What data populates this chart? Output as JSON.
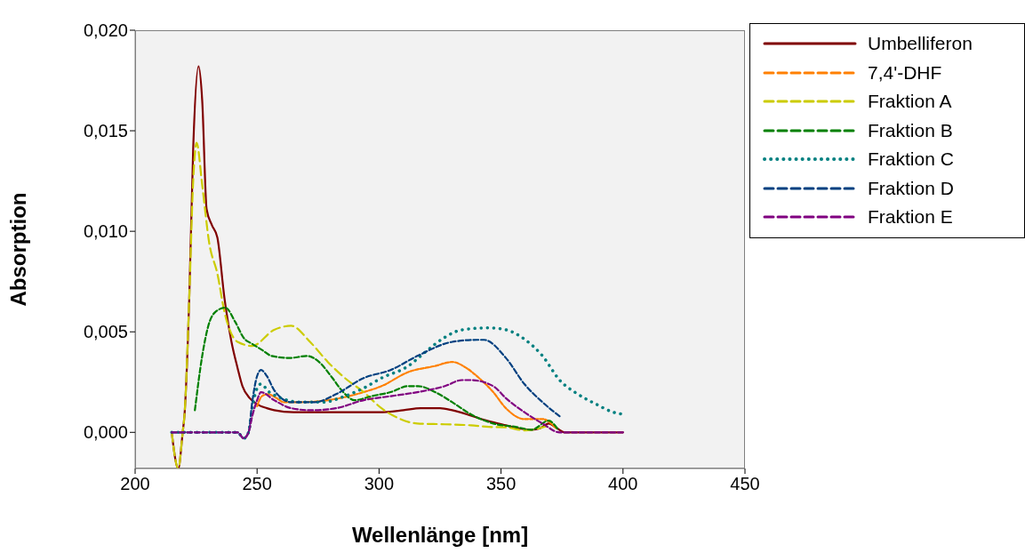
{
  "chart_data": {
    "type": "line",
    "xlabel": "Wellenlänge [nm]",
    "ylabel": "Absorption",
    "xlim": [
      200,
      450
    ],
    "xticks": [
      200,
      250,
      300,
      350,
      400,
      450
    ],
    "ylim": [
      -0.0018,
      0.02
    ],
    "yticks": [
      {
        "value": 0,
        "label": "0,000"
      },
      {
        "value": 0.005,
        "label": "0,005"
      },
      {
        "value": 0.01,
        "label": "0,010"
      },
      {
        "value": 0.015,
        "label": "0,015"
      },
      {
        "value": 0.02,
        "label": "0,020"
      }
    ],
    "grid": false,
    "legend": "right",
    "marker": "none",
    "series": [
      {
        "name": "Umbelliferon",
        "color": "#800000",
        "line_style": "solid",
        "x": [
          215,
          217.7,
          219.5,
          220.2,
          222.2,
          223.8,
          226,
          227.5,
          229.3,
          231.5,
          233.7,
          236.6,
          239.5,
          242,
          244,
          247,
          250,
          254,
          257,
          265,
          280,
          300,
          310,
          317,
          325,
          330,
          336,
          341,
          347,
          352,
          357,
          362.5,
          366,
          369.5,
          373,
          376,
          380,
          400
        ],
        "values": [
          0,
          -0.0018,
          0,
          0.0008,
          0.0067,
          0.0141,
          0.0182,
          0.0165,
          0.0111,
          0.0103,
          0.0097,
          0.0067,
          0.0045,
          0.0032,
          0.0023,
          0.0017,
          0.0014,
          0.0012,
          0.0011,
          0.001,
          0.001,
          0.001,
          0.0011,
          0.0012,
          0.0012,
          0.0011,
          0.0009,
          0.0007,
          0.0005,
          0.00035,
          0.0002,
          0.00013,
          0.0002,
          0.00044,
          0.0002,
          0,
          0,
          0
        ]
      },
      {
        "name": "7,4'-DHF",
        "color": "#ff8000",
        "line_style": "dashed",
        "x": [
          250,
          252,
          254.5,
          258,
          261,
          268,
          279,
          293.7,
          301,
          312,
          323,
          330,
          335.8,
          341,
          346.8,
          352,
          359.6,
          367,
          372.4
        ],
        "values": [
          0.0013,
          0.0018,
          0.0019,
          0.0017,
          0.0015,
          0.0015,
          0.0016,
          0.002,
          0.0023,
          0.003,
          0.0033,
          0.0035,
          0.0032,
          0.0027,
          0.002,
          0.0012,
          0.00066,
          0.00066,
          0.00022
        ]
      },
      {
        "name": "Fraktion A",
        "color": "#cccc00",
        "line_style": "dashed",
        "x": [
          215,
          217.7,
          219.5,
          220.2,
          222.2,
          223.8,
          225.2,
          227.5,
          230.4,
          233.7,
          236.6,
          242,
          248,
          257,
          264,
          271.7,
          279,
          286,
          293.7,
          301,
          308,
          315.7,
          327,
          337.6,
          345,
          352,
          359.6,
          368.7
        ],
        "values": [
          0,
          -0.0018,
          0,
          0.0008,
          0.0067,
          0.0125,
          0.0144,
          0.0123,
          0.0094,
          0.0079,
          0.006,
          0.0045,
          0.0043,
          0.0051,
          0.0053,
          0.0045,
          0.0035,
          0.0027,
          0.002,
          0.0012,
          0.0007,
          0.00044,
          0.0004,
          0.00035,
          0.00027,
          0.00025,
          0.0001,
          0.0003
        ]
      },
      {
        "name": "Fraktion B",
        "color": "#008000",
        "line_style": "dashed",
        "x": [
          224.5,
          227.5,
          230,
          233,
          237,
          241,
          244.5,
          248,
          252,
          256,
          263.3,
          270.6,
          275.4,
          280.9,
          284.6,
          290,
          297,
          304.7,
          312,
          316,
          323,
          330,
          337.6,
          346.8,
          356,
          362.5,
          369.5,
          373
        ],
        "values": [
          0.0011,
          0.0038,
          0.0053,
          0.006,
          0.0062,
          0.0055,
          0.0047,
          0.0044,
          0.0041,
          0.0038,
          0.0037,
          0.0038,
          0.0035,
          0.0027,
          0.0021,
          0.0016,
          0.0018,
          0.002,
          0.0023,
          0.0023,
          0.002,
          0.0015,
          0.0009,
          0.00044,
          0.00027,
          0.00013,
          0.00058,
          0.0002
        ]
      },
      {
        "name": "Fraktion C",
        "color": "#008080",
        "line_style": "dotted",
        "x": [
          215,
          235,
          242,
          244.5,
          246.5,
          248,
          250,
          251.5,
          255,
          258,
          268,
          277,
          286,
          293.7,
          301,
          312,
          319,
          326.6,
          334,
          345,
          352,
          360,
          367,
          374,
          381.5,
          389,
          396,
          400
        ],
        "values": [
          0,
          0,
          0,
          -0.0003,
          0,
          0.0012,
          0.0022,
          0.0024,
          0.002,
          0.0018,
          0.0015,
          0.0015,
          0.0018,
          0.0022,
          0.0027,
          0.0033,
          0.004,
          0.0047,
          0.0051,
          0.0052,
          0.0051,
          0.0046,
          0.0038,
          0.0026,
          0.0019,
          0.0014,
          0.001,
          0.0009
        ]
      },
      {
        "name": "Fraktion D",
        "color": "#004080",
        "line_style": "dashed",
        "x": [
          215,
          235,
          242,
          244.5,
          246.5,
          248,
          250,
          251.6,
          254,
          257,
          264,
          273.6,
          282.4,
          293.7,
          304.7,
          315.7,
          330,
          340,
          343,
          352,
          359.6,
          367,
          374
        ],
        "values": [
          0,
          0,
          0,
          -0.0003,
          0,
          0.0015,
          0.0028,
          0.0031,
          0.0028,
          0.0021,
          0.0015,
          0.0015,
          0.0019,
          0.0027,
          0.0031,
          0.0038,
          0.0045,
          0.0046,
          0.0046,
          0.0037,
          0.0024,
          0.0015,
          0.0008
        ]
      },
      {
        "name": "Fraktion E",
        "color": "#800080",
        "line_style": "dashed",
        "x": [
          215,
          235,
          242,
          244.5,
          246.5,
          248,
          250,
          251.6,
          257,
          264,
          272,
          282.4,
          293.7,
          304.7,
          315.7,
          327,
          334,
          337.6,
          346.8,
          352,
          359.6,
          367,
          374,
          400
        ],
        "values": [
          0,
          0,
          0,
          -0.0003,
          0,
          0.0008,
          0.0016,
          0.002,
          0.0016,
          0.0012,
          0.0011,
          0.0012,
          0.0016,
          0.0018,
          0.002,
          0.0023,
          0.0026,
          0.0026,
          0.0023,
          0.0017,
          0.001,
          0.00044,
          0,
          0
        ]
      }
    ]
  }
}
